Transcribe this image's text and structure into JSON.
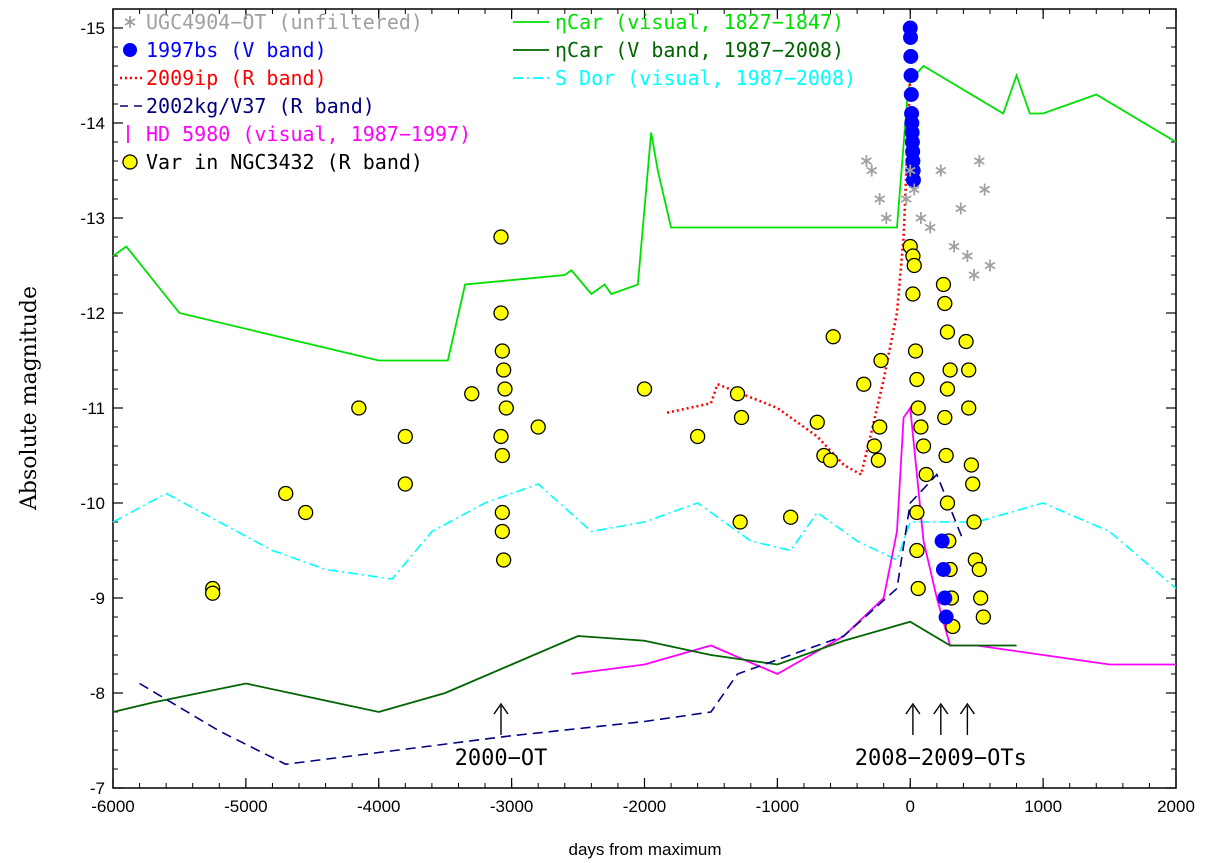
{
  "chart_data": {
    "type": "line",
    "title": "",
    "xlabel": "days from maximum",
    "ylabel": "Absolute magnitude",
    "xlim": [
      -6000,
      2000
    ],
    "ylim": [
      -7,
      -15.2
    ],
    "y_inverted": true,
    "grid": false,
    "legend_position": "top",
    "x_ticks": [
      -6000,
      -5000,
      -4000,
      -3000,
      -2000,
      -1000,
      0,
      1000,
      2000
    ],
    "y_ticks": [
      -7,
      -8,
      -9,
      -10,
      -11,
      -12,
      -13,
      -14,
      -15
    ],
    "series": [
      {
        "name": "UGC4904-OT (unfiltered)",
        "color": "#a0a0a0",
        "style": "asterisk",
        "points": [
          [
            -330,
            -13.6
          ],
          [
            -290,
            -13.5
          ],
          [
            -230,
            -13.2
          ],
          [
            -180,
            -13.0
          ],
          [
            -30,
            -13.2
          ],
          [
            0,
            -13.5
          ],
          [
            30,
            -13.3
          ],
          [
            80,
            -13.0
          ],
          [
            150,
            -12.9
          ],
          [
            230,
            -13.5
          ],
          [
            330,
            -12.7
          ],
          [
            380,
            -13.1
          ],
          [
            430,
            -12.6
          ],
          [
            480,
            -12.4
          ],
          [
            520,
            -13.6
          ],
          [
            560,
            -13.3
          ],
          [
            600,
            -12.5
          ]
        ]
      },
      {
        "name": "1997bs (V band)",
        "color": "#0000ff",
        "style": "filled-circle",
        "points": [
          [
            0,
            -15.0
          ],
          [
            2,
            -14.9
          ],
          [
            4,
            -14.7
          ],
          [
            6,
            -14.5
          ],
          [
            8,
            -14.3
          ],
          [
            10,
            -14.1
          ],
          [
            12,
            -14.0
          ],
          [
            14,
            -13.9
          ],
          [
            16,
            -13.8
          ],
          [
            18,
            -13.7
          ],
          [
            20,
            -13.6
          ],
          [
            22,
            -13.5
          ],
          [
            24,
            -13.4
          ],
          [
            240,
            -9.6
          ],
          [
            250,
            -9.3
          ],
          [
            260,
            -9.0
          ],
          [
            270,
            -8.8
          ]
        ]
      },
      {
        "name": "2009ip (R band)",
        "color": "#ff0000",
        "style": "dotted",
        "points": [
          [
            -1830,
            -10.95
          ],
          [
            -1500,
            -11.05
          ],
          [
            -1450,
            -11.25
          ],
          [
            -1000,
            -11.0
          ],
          [
            -700,
            -10.7
          ],
          [
            -500,
            -10.4
          ],
          [
            -370,
            -10.3
          ],
          [
            -300,
            -10.7
          ],
          [
            -200,
            -11.3
          ],
          [
            -100,
            -12.0
          ],
          [
            -50,
            -12.8
          ],
          [
            0,
            -14.5
          ]
        ]
      },
      {
        "name": "2002kg/V37 (R band)",
        "color": "#000080",
        "style": "dashed",
        "points": [
          [
            -5800,
            -8.1
          ],
          [
            -5200,
            -7.6
          ],
          [
            -4700,
            -7.25
          ],
          [
            -3000,
            -7.55
          ],
          [
            -2000,
            -7.7
          ],
          [
            -1500,
            -7.8
          ],
          [
            -1300,
            -8.2
          ],
          [
            -500,
            -8.6
          ],
          [
            -100,
            -9.1
          ],
          [
            0,
            -10.0
          ],
          [
            200,
            -10.3
          ],
          [
            400,
            -9.6
          ]
        ]
      },
      {
        "name": "HD 5980 (visual, 1987−1997)",
        "color": "#ff00ff",
        "style": "vertical-bar",
        "points": [
          [
            -2550,
            -8.2
          ],
          [
            -2000,
            -8.3
          ],
          [
            -1500,
            -8.5
          ],
          [
            -1000,
            -8.2
          ],
          [
            -500,
            -8.6
          ],
          [
            -200,
            -9.0
          ],
          [
            -100,
            -9.7
          ],
          [
            -50,
            -10.9
          ],
          [
            0,
            -11.0
          ],
          [
            50,
            -10.3
          ],
          [
            100,
            -9.6
          ],
          [
            200,
            -9.0
          ],
          [
            300,
            -8.5
          ],
          [
            500,
            -8.5
          ],
          [
            1000,
            -8.4
          ],
          [
            1500,
            -8.3
          ],
          [
            2000,
            -8.3
          ]
        ]
      },
      {
        "name": "Var in NGC3432 (R band)",
        "color": "#ffff00",
        "style": "open-circle-filled",
        "points": [
          [
            -5250,
            -9.1
          ],
          [
            -5250,
            -9.05
          ],
          [
            -4700,
            -10.1
          ],
          [
            -4550,
            -9.9
          ],
          [
            -4150,
            -11.0
          ],
          [
            -3800,
            -10.7
          ],
          [
            -3800,
            -10.2
          ],
          [
            -3300,
            -11.15
          ],
          [
            -3080,
            -12.8
          ],
          [
            -3080,
            -12.0
          ],
          [
            -3070,
            -11.6
          ],
          [
            -3060,
            -11.4
          ],
          [
            -3050,
            -11.2
          ],
          [
            -3040,
            -11.0
          ],
          [
            -3080,
            -10.7
          ],
          [
            -3070,
            -10.5
          ],
          [
            -3070,
            -9.9
          ],
          [
            -3070,
            -9.7
          ],
          [
            -3060,
            -9.4
          ],
          [
            -2800,
            -10.8
          ],
          [
            -2000,
            -11.2
          ],
          [
            -1600,
            -10.7
          ],
          [
            -1300,
            -11.15
          ],
          [
            -1270,
            -10.9
          ],
          [
            -1280,
            -9.8
          ],
          [
            -900,
            -9.85
          ],
          [
            -650,
            -10.5
          ],
          [
            -600,
            -10.45
          ],
          [
            -700,
            -10.85
          ],
          [
            -580,
            -11.75
          ],
          [
            -350,
            -11.25
          ],
          [
            -270,
            -10.6
          ],
          [
            -240,
            -10.45
          ],
          [
            -230,
            -10.8
          ],
          [
            -220,
            -11.5
          ],
          [
            0,
            -12.7
          ],
          [
            20,
            -12.6
          ],
          [
            30,
            -12.5
          ],
          [
            20,
            -12.2
          ],
          [
            40,
            -11.6
          ],
          [
            50,
            -11.3
          ],
          [
            60,
            -11.0
          ],
          [
            80,
            -10.8
          ],
          [
            100,
            -10.6
          ],
          [
            120,
            -10.3
          ],
          [
            50,
            -9.9
          ],
          [
            50,
            -9.5
          ],
          [
            60,
            -9.1
          ],
          [
            250,
            -12.3
          ],
          [
            260,
            -12.1
          ],
          [
            280,
            -11.8
          ],
          [
            300,
            -11.4
          ],
          [
            280,
            -11.2
          ],
          [
            260,
            -10.9
          ],
          [
            270,
            -10.5
          ],
          [
            280,
            -10.0
          ],
          [
            290,
            -9.6
          ],
          [
            300,
            -9.3
          ],
          [
            310,
            -9.0
          ],
          [
            320,
            -8.7
          ],
          [
            420,
            -11.7
          ],
          [
            440,
            -11.4
          ],
          [
            440,
            -11.0
          ],
          [
            460,
            -10.4
          ],
          [
            470,
            -10.2
          ],
          [
            480,
            -9.8
          ],
          [
            490,
            -9.4
          ],
          [
            520,
            -9.3
          ],
          [
            530,
            -9.0
          ],
          [
            550,
            -8.8
          ]
        ]
      },
      {
        "name": "ηCar (visual, 1827−1847)",
        "color": "#00e000",
        "style": "solid",
        "points": [
          [
            -6000,
            -12.6
          ],
          [
            -5900,
            -12.7
          ],
          [
            -5500,
            -12.0
          ],
          [
            -4000,
            -11.5
          ],
          [
            -3480,
            -11.5
          ],
          [
            -3350,
            -12.3
          ],
          [
            -2600,
            -12.4
          ],
          [
            -2550,
            -12.45
          ],
          [
            -2400,
            -12.2
          ],
          [
            -2300,
            -12.3
          ],
          [
            -2250,
            -12.2
          ],
          [
            -2050,
            -12.3
          ],
          [
            -1950,
            -13.9
          ],
          [
            -1900,
            -13.5
          ],
          [
            -1850,
            -13.2
          ],
          [
            -1800,
            -12.9
          ],
          [
            -100,
            -12.9
          ],
          [
            -20,
            -14.3
          ],
          [
            0,
            -14.45
          ],
          [
            100,
            -14.6
          ],
          [
            700,
            -14.1
          ],
          [
            800,
            -14.5
          ],
          [
            900,
            -14.1
          ],
          [
            1000,
            -14.1
          ],
          [
            1400,
            -14.3
          ],
          [
            2000,
            -13.8
          ]
        ]
      },
      {
        "name": "ηCar (V band, 1987−2008)",
        "color": "#006400",
        "style": "solid",
        "points": [
          [
            -6000,
            -7.8
          ],
          [
            -5700,
            -7.9
          ],
          [
            -5000,
            -8.1
          ],
          [
            -4500,
            -7.95
          ],
          [
            -4000,
            -7.8
          ],
          [
            -3500,
            -8.0
          ],
          [
            -3000,
            -8.3
          ],
          [
            -2500,
            -8.6
          ],
          [
            -2000,
            -8.55
          ],
          [
            -1500,
            -8.4
          ],
          [
            -1000,
            -8.3
          ],
          [
            -500,
            -8.55
          ],
          [
            0,
            -8.75
          ],
          [
            300,
            -8.5
          ],
          [
            800,
            -8.5
          ]
        ]
      },
      {
        "name": "S Dor (visual, 1987−2008)",
        "color": "#00ffff",
        "style": "dash-dot",
        "points": [
          [
            -6000,
            -9.8
          ],
          [
            -5600,
            -10.1
          ],
          [
            -5200,
            -9.8
          ],
          [
            -4800,
            -9.5
          ],
          [
            -4400,
            -9.3
          ],
          [
            -3900,
            -9.2
          ],
          [
            -3600,
            -9.7
          ],
          [
            -3200,
            -10.0
          ],
          [
            -2800,
            -10.2
          ],
          [
            -2400,
            -9.7
          ],
          [
            -2000,
            -9.8
          ],
          [
            -1600,
            -10.0
          ],
          [
            -1200,
            -9.6
          ],
          [
            -900,
            -9.5
          ],
          [
            -700,
            -9.9
          ],
          [
            -400,
            -9.6
          ],
          [
            -100,
            -9.4
          ],
          [
            0,
            -9.8
          ],
          [
            500,
            -9.8
          ],
          [
            1000,
            -10.0
          ],
          [
            1500,
            -9.7
          ],
          [
            2000,
            -9.1
          ]
        ]
      }
    ],
    "annotations": [
      "2000−OT",
      "2008−2009−OTs"
    ]
  },
  "legend": {
    "left": [
      {
        "label": "UGC4904−OT (unfiltered)",
        "color": "#a0a0a0",
        "symbol": "asterisk"
      },
      {
        "label": "1997bs (V band)",
        "color": "#0000ff",
        "symbol": "filled-circle"
      },
      {
        "label": "2009ip (R band)",
        "color": "#ff0000",
        "symbol": "dotted-line"
      },
      {
        "label": "2002kg/V37 (R band)",
        "color": "#000080",
        "symbol": "dashed-line"
      },
      {
        "label": "HD 5980 (visual, 1987−1997)",
        "color": "#ff00ff",
        "symbol": "bar"
      },
      {
        "label": "Var in NGC3432 (R band)",
        "color": "#000000",
        "symbol": "yellow-circle"
      }
    ],
    "right": [
      {
        "label": "ηCar (visual, 1827−1847)",
        "color": "#00e000",
        "symbol": "solid-line"
      },
      {
        "label": "ηCar (V band, 1987−2008)",
        "color": "#006400",
        "symbol": "solid-line"
      },
      {
        "label": "S Dor (visual, 1987−2008)",
        "color": "#00ffff",
        "symbol": "dash-dot-line"
      }
    ]
  }
}
